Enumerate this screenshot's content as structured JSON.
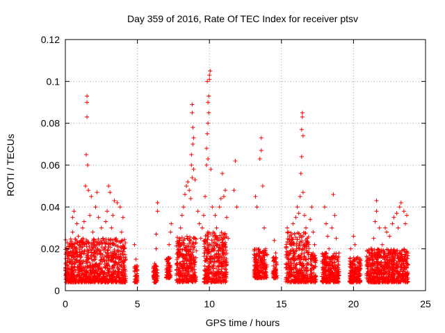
{
  "chart_data": {
    "type": "scatter",
    "title": "Day 359 of 2016, Rate Of TEC Index for receiver ptsv",
    "xlabel": "GPS time / hours",
    "ylabel": "ROTI / TECUs",
    "xlim": [
      0,
      25
    ],
    "ylim": [
      0,
      0.12
    ],
    "xticks": [
      0,
      5,
      10,
      15,
      20,
      25
    ],
    "yticks": [
      0,
      0.02,
      0.04,
      0.06,
      0.08,
      0.1,
      0.12
    ],
    "xtick_labels": [
      "0",
      "5",
      "10",
      "15",
      "20",
      "25"
    ],
    "ytick_labels": [
      "0",
      "0.02",
      "0.04",
      "0.06",
      "0.08",
      "0.1",
      "0.12"
    ],
    "grid": true,
    "grid_style": "dotted",
    "marker": "+",
    "color": "#ff0000",
    "series": [
      {
        "points": [
          [
            0.1,
            0.012
          ],
          [
            0.2,
            0.018
          ],
          [
            0.3,
            0.022
          ],
          [
            0.4,
            0.015
          ],
          [
            0.5,
            0.028
          ],
          [
            0.5,
            0.035
          ],
          [
            0.6,
            0.038
          ],
          [
            0.7,
            0.02
          ],
          [
            0.8,
            0.032
          ],
          [
            0.9,
            0.026
          ],
          [
            1.0,
            0.014
          ],
          [
            1.1,
            0.024
          ],
          [
            1.2,
            0.03
          ],
          [
            1.3,
            0.033
          ],
          [
            1.4,
            0.05
          ],
          [
            1.45,
            0.065
          ],
          [
            1.5,
            0.083
          ],
          [
            1.5,
            0.09
          ],
          [
            1.5,
            0.093
          ],
          [
            1.55,
            0.06
          ],
          [
            1.6,
            0.048
          ],
          [
            1.7,
            0.036
          ],
          [
            1.8,
            0.045
          ],
          [
            1.9,
            0.028
          ],
          [
            2.0,
            0.022
          ],
          [
            2.1,
            0.04
          ],
          [
            2.2,
            0.047
          ],
          [
            2.3,
            0.035
          ],
          [
            2.5,
            0.03
          ],
          [
            2.6,
            0.025
          ],
          [
            2.7,
            0.02
          ],
          [
            2.8,
            0.033
          ],
          [
            2.9,
            0.038
          ],
          [
            3.0,
            0.05
          ],
          [
            3.1,
            0.047
          ],
          [
            3.2,
            0.03
          ],
          [
            3.3,
            0.036
          ],
          [
            3.4,
            0.043
          ],
          [
            3.6,
            0.042
          ],
          [
            3.8,
            0.04
          ],
          [
            3.9,
            0.028
          ],
          [
            4.0,
            0.035
          ],
          [
            4.1,
            0.02
          ],
          [
            4.2,
            0.015
          ],
          [
            4.0,
            0.01
          ],
          [
            4.8,
            0.022
          ],
          [
            4.9,
            0.015
          ],
          [
            5.0,
            0.01
          ],
          [
            6.1,
            0.007
          ],
          [
            6.2,
            0.013
          ],
          [
            6.3,
            0.02
          ],
          [
            6.3,
            0.027
          ],
          [
            6.4,
            0.038
          ],
          [
            6.4,
            0.042
          ],
          [
            7.0,
            0.01
          ],
          [
            7.1,
            0.015
          ],
          [
            7.2,
            0.022
          ],
          [
            7.3,
            0.028
          ],
          [
            7.35,
            0.032
          ],
          [
            7.8,
            0.018
          ],
          [
            7.9,
            0.024
          ],
          [
            8.0,
            0.03
          ],
          [
            8.1,
            0.036
          ],
          [
            8.2,
            0.04
          ],
          [
            8.3,
            0.046
          ],
          [
            8.4,
            0.05
          ],
          [
            8.5,
            0.052
          ],
          [
            8.6,
            0.048
          ],
          [
            8.7,
            0.044
          ],
          [
            8.8,
            0.054
          ],
          [
            8.9,
            0.058
          ],
          [
            9.0,
            0.053
          ],
          [
            8.75,
            0.065
          ],
          [
            8.85,
            0.07
          ],
          [
            8.9,
            0.073
          ],
          [
            8.85,
            0.078
          ],
          [
            8.8,
            0.085
          ],
          [
            8.8,
            0.089
          ],
          [
            8.75,
            0.06
          ],
          [
            9.2,
            0.038
          ],
          [
            9.3,
            0.032
          ],
          [
            9.4,
            0.025
          ],
          [
            9.5,
            0.03
          ],
          [
            9.6,
            0.036
          ],
          [
            9.7,
            0.045
          ],
          [
            9.8,
            0.06
          ],
          [
            9.8,
            0.068
          ],
          [
            9.85,
            0.075
          ],
          [
            9.9,
            0.08
          ],
          [
            9.95,
            0.085
          ],
          [
            9.9,
            0.09
          ],
          [
            9.95,
            0.093
          ],
          [
            9.85,
            0.1
          ],
          [
            10.0,
            0.101
          ],
          [
            10.0,
            0.103
          ],
          [
            10.05,
            0.105
          ],
          [
            9.9,
            0.063
          ],
          [
            10.1,
            0.058
          ],
          [
            10.2,
            0.04
          ],
          [
            10.4,
            0.036
          ],
          [
            10.5,
            0.03
          ],
          [
            10.6,
            0.025
          ],
          [
            10.7,
            0.04
          ],
          [
            10.8,
            0.044
          ],
          [
            10.9,
            0.056
          ],
          [
            11.0,
            0.045
          ],
          [
            11.1,
            0.048
          ],
          [
            11.2,
            0.035
          ],
          [
            11.3,
            0.025
          ],
          [
            11.7,
            0.048
          ],
          [
            11.8,
            0.062
          ],
          [
            11.9,
            0.04
          ],
          [
            13.2,
            0.045
          ],
          [
            13.3,
            0.04
          ],
          [
            13.5,
            0.063
          ],
          [
            13.6,
            0.067
          ],
          [
            13.6,
            0.073
          ],
          [
            13.7,
            0.05
          ],
          [
            13.8,
            0.03
          ],
          [
            13.9,
            0.02
          ],
          [
            14.0,
            0.017
          ],
          [
            14.5,
            0.024
          ],
          [
            14.6,
            0.018
          ],
          [
            15.4,
            0.03
          ],
          [
            15.5,
            0.028
          ],
          [
            15.6,
            0.022
          ],
          [
            15.8,
            0.032
          ],
          [
            15.9,
            0.027
          ],
          [
            16.0,
            0.035
          ],
          [
            16.1,
            0.04
          ],
          [
            16.2,
            0.037
          ],
          [
            16.3,
            0.045
          ],
          [
            16.35,
            0.056
          ],
          [
            16.4,
            0.064
          ],
          [
            16.4,
            0.077
          ],
          [
            16.45,
            0.083
          ],
          [
            16.45,
            0.085
          ],
          [
            16.5,
            0.074
          ],
          [
            16.5,
            0.047
          ],
          [
            16.6,
            0.036
          ],
          [
            16.7,
            0.03
          ],
          [
            16.8,
            0.025
          ],
          [
            17.0,
            0.034
          ],
          [
            17.1,
            0.04
          ],
          [
            17.2,
            0.028
          ],
          [
            17.3,
            0.022
          ],
          [
            18.0,
            0.04
          ],
          [
            18.1,
            0.032
          ],
          [
            18.2,
            0.026
          ],
          [
            18.3,
            0.02
          ],
          [
            18.5,
            0.03
          ],
          [
            18.6,
            0.046
          ],
          [
            18.7,
            0.036
          ],
          [
            18.8,
            0.025
          ],
          [
            19.0,
            0.018
          ],
          [
            19.8,
            0.02
          ],
          [
            20.0,
            0.026
          ],
          [
            20.1,
            0.022
          ],
          [
            20.3,
            0.016
          ],
          [
            20.5,
            0.012
          ],
          [
            21.0,
            0.015
          ],
          [
            21.2,
            0.02
          ],
          [
            21.4,
            0.025
          ],
          [
            21.5,
            0.033
          ],
          [
            21.6,
            0.038
          ],
          [
            21.6,
            0.043
          ],
          [
            21.8,
            0.03
          ],
          [
            22.0,
            0.022
          ],
          [
            22.2,
            0.03
          ],
          [
            22.3,
            0.028
          ],
          [
            22.5,
            0.026
          ],
          [
            22.7,
            0.032
          ],
          [
            22.8,
            0.035
          ],
          [
            23.0,
            0.037
          ],
          [
            23.1,
            0.03
          ],
          [
            23.2,
            0.04
          ],
          [
            23.3,
            0.042
          ],
          [
            23.5,
            0.038
          ],
          [
            23.6,
            0.032
          ],
          [
            23.7,
            0.036
          ]
        ],
        "bands": [
          {
            "x": [
              0.0,
              4.2
            ],
            "y": [
              0.004,
              0.025
            ]
          },
          {
            "x": [
              4.8,
              5.0
            ],
            "y": [
              0.004,
              0.012
            ]
          },
          {
            "x": [
              6.1,
              6.4
            ],
            "y": [
              0.004,
              0.012
            ]
          },
          {
            "x": [
              7.0,
              7.3
            ],
            "y": [
              0.006,
              0.016
            ]
          },
          {
            "x": [
              7.7,
              9.1
            ],
            "y": [
              0.004,
              0.026
            ]
          },
          {
            "x": [
              9.6,
              11.2
            ],
            "y": [
              0.004,
              0.028
            ]
          },
          {
            "x": [
              13.1,
              14.0
            ],
            "y": [
              0.006,
              0.02
            ]
          },
          {
            "x": [
              14.4,
              14.7
            ],
            "y": [
              0.006,
              0.016
            ]
          },
          {
            "x": [
              15.3,
              16.9
            ],
            "y": [
              0.004,
              0.028
            ]
          },
          {
            "x": [
              17.0,
              17.4
            ],
            "y": [
              0.004,
              0.018
            ]
          },
          {
            "x": [
              17.8,
              19.0
            ],
            "y": [
              0.004,
              0.018
            ]
          },
          {
            "x": [
              19.7,
              20.5
            ],
            "y": [
              0.004,
              0.016
            ]
          },
          {
            "x": [
              20.9,
              23.8
            ],
            "y": [
              0.004,
              0.02
            ]
          }
        ]
      }
    ]
  }
}
